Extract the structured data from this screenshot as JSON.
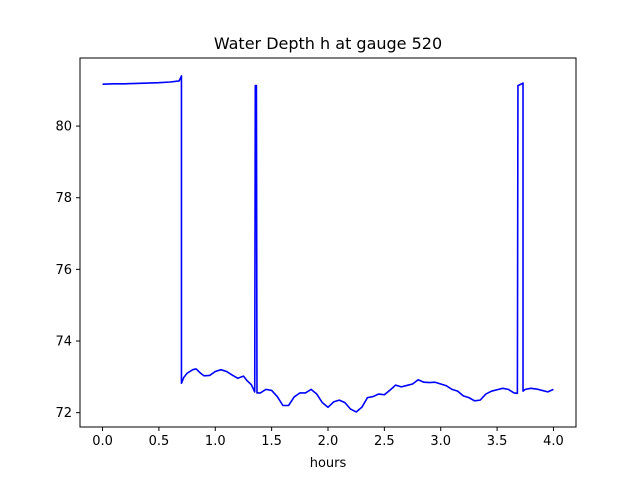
{
  "chart_data": {
    "type": "line",
    "title": "Water Depth h at gauge 520",
    "xlabel": "hours",
    "ylabel": "",
    "xlim": [
      -0.2,
      4.2
    ],
    "ylim": [
      71.6,
      81.9
    ],
    "xticks": [
      0.0,
      0.5,
      1.0,
      1.5,
      2.0,
      2.5,
      3.0,
      3.5,
      4.0
    ],
    "xtick_labels": [
      "0.0",
      "0.5",
      "1.0",
      "1.5",
      "2.0",
      "2.5",
      "3.0",
      "3.5",
      "4.0"
    ],
    "yticks": [
      72,
      74,
      76,
      78,
      80
    ],
    "ytick_labels": [
      "72",
      "74",
      "76",
      "78",
      "80"
    ],
    "grid": false,
    "series": [
      {
        "name": "",
        "color": "#0000ff",
        "points": [
          [
            0.0,
            81.17
          ],
          [
            0.1,
            81.18
          ],
          [
            0.2,
            81.18
          ],
          [
            0.3,
            81.19
          ],
          [
            0.4,
            81.2
          ],
          [
            0.5,
            81.21
          ],
          [
            0.6,
            81.23
          ],
          [
            0.68,
            81.26
          ],
          [
            0.7,
            81.4
          ],
          [
            0.7,
            72.82
          ],
          [
            0.72,
            72.98
          ],
          [
            0.75,
            73.1
          ],
          [
            0.8,
            73.2
          ],
          [
            0.83,
            73.22
          ],
          [
            0.87,
            73.1
          ],
          [
            0.9,
            73.03
          ],
          [
            0.95,
            73.04
          ],
          [
            1.0,
            73.15
          ],
          [
            1.05,
            73.2
          ],
          [
            1.1,
            73.15
          ],
          [
            1.15,
            73.05
          ],
          [
            1.2,
            72.96
          ],
          [
            1.25,
            73.02
          ],
          [
            1.28,
            72.9
          ],
          [
            1.32,
            72.78
          ],
          [
            1.35,
            72.58
          ],
          [
            1.355,
            81.13
          ],
          [
            1.365,
            81.13
          ],
          [
            1.37,
            72.55
          ],
          [
            1.4,
            72.55
          ],
          [
            1.45,
            72.65
          ],
          [
            1.5,
            72.62
          ],
          [
            1.55,
            72.45
          ],
          [
            1.6,
            72.2
          ],
          [
            1.65,
            72.2
          ],
          [
            1.7,
            72.44
          ],
          [
            1.75,
            72.55
          ],
          [
            1.8,
            72.55
          ],
          [
            1.85,
            72.65
          ],
          [
            1.9,
            72.52
          ],
          [
            1.95,
            72.28
          ],
          [
            2.0,
            72.15
          ],
          [
            2.05,
            72.3
          ],
          [
            2.1,
            72.35
          ],
          [
            2.15,
            72.28
          ],
          [
            2.2,
            72.1
          ],
          [
            2.25,
            72.02
          ],
          [
            2.3,
            72.15
          ],
          [
            2.35,
            72.42
          ],
          [
            2.4,
            72.45
          ],
          [
            2.45,
            72.52
          ],
          [
            2.5,
            72.5
          ],
          [
            2.55,
            72.63
          ],
          [
            2.6,
            72.77
          ],
          [
            2.65,
            72.72
          ],
          [
            2.7,
            72.76
          ],
          [
            2.75,
            72.8
          ],
          [
            2.8,
            72.92
          ],
          [
            2.85,
            72.85
          ],
          [
            2.9,
            72.84
          ],
          [
            2.95,
            72.85
          ],
          [
            3.0,
            72.8
          ],
          [
            3.05,
            72.75
          ],
          [
            3.1,
            72.65
          ],
          [
            3.15,
            72.6
          ],
          [
            3.2,
            72.47
          ],
          [
            3.25,
            72.42
          ],
          [
            3.3,
            72.33
          ],
          [
            3.35,
            72.35
          ],
          [
            3.4,
            72.52
          ],
          [
            3.45,
            72.6
          ],
          [
            3.5,
            72.64
          ],
          [
            3.55,
            72.68
          ],
          [
            3.6,
            72.65
          ],
          [
            3.65,
            72.55
          ],
          [
            3.68,
            72.54
          ],
          [
            3.685,
            81.13
          ],
          [
            3.72,
            81.18
          ],
          [
            3.73,
            81.2
          ],
          [
            3.73,
            72.6
          ],
          [
            3.75,
            72.65
          ],
          [
            3.8,
            72.68
          ],
          [
            3.85,
            72.66
          ],
          [
            3.9,
            72.62
          ],
          [
            3.95,
            72.58
          ],
          [
            4.0,
            72.65
          ]
        ]
      }
    ]
  }
}
